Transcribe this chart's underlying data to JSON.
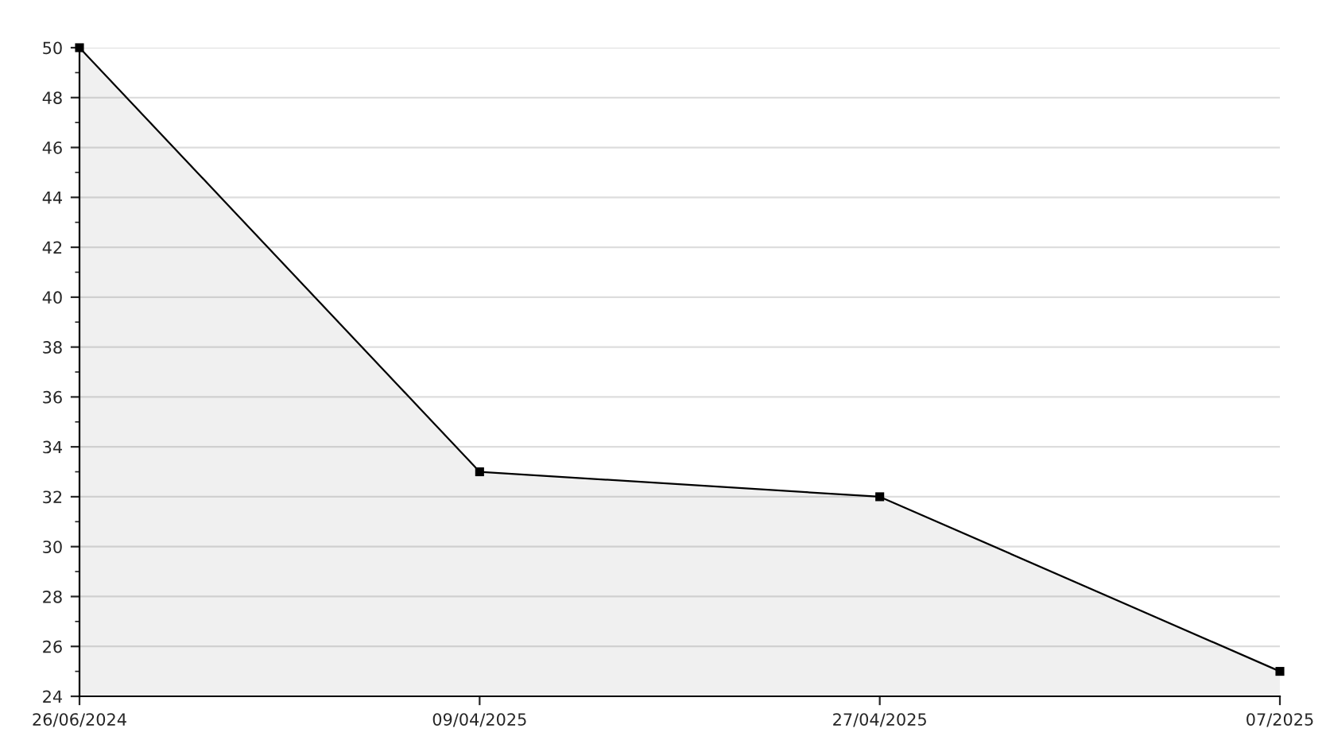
{
  "chart_data": {
    "type": "area",
    "categories": [
      "26/06/2024",
      "09/04/2025",
      "27/04/2025",
      "07/2025"
    ],
    "series": [
      {
        "color": "#000000",
        "values": [
          50,
          33,
          32,
          25
        ]
      }
    ],
    "ylim": [
      24,
      50
    ],
    "yticks": [
      24,
      26,
      28,
      30,
      32,
      34,
      36,
      38,
      40,
      42,
      44,
      46,
      48,
      50
    ],
    "grid": "y",
    "marker": "square",
    "line_style": "solid",
    "legend": false
  }
}
